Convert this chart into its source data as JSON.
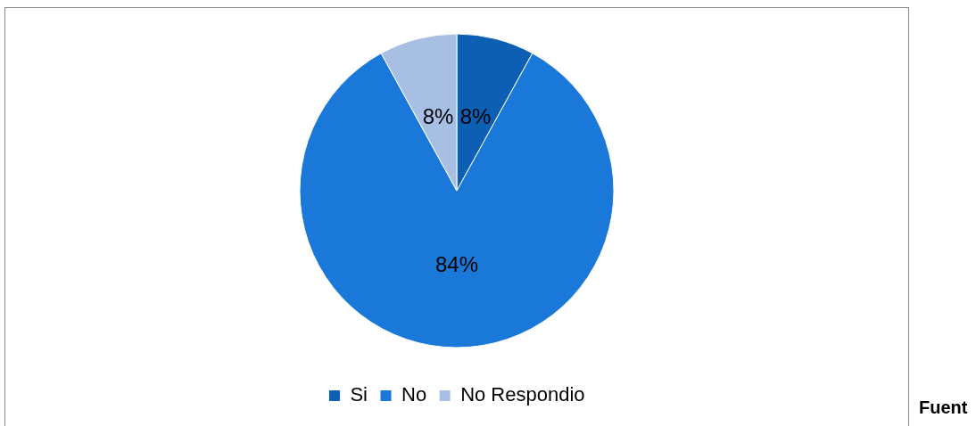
{
  "chart_data": {
    "type": "pie",
    "categories": [
      "Si",
      "No",
      "No Respondio"
    ],
    "values": [
      8,
      84,
      8
    ],
    "value_labels": [
      "8%",
      "84%",
      "8%"
    ],
    "colors": [
      "#0d5fb3",
      "#1a78d8",
      "#a8bfe4"
    ],
    "legend": "bottom",
    "annotations": [
      "Fuent"
    ]
  }
}
